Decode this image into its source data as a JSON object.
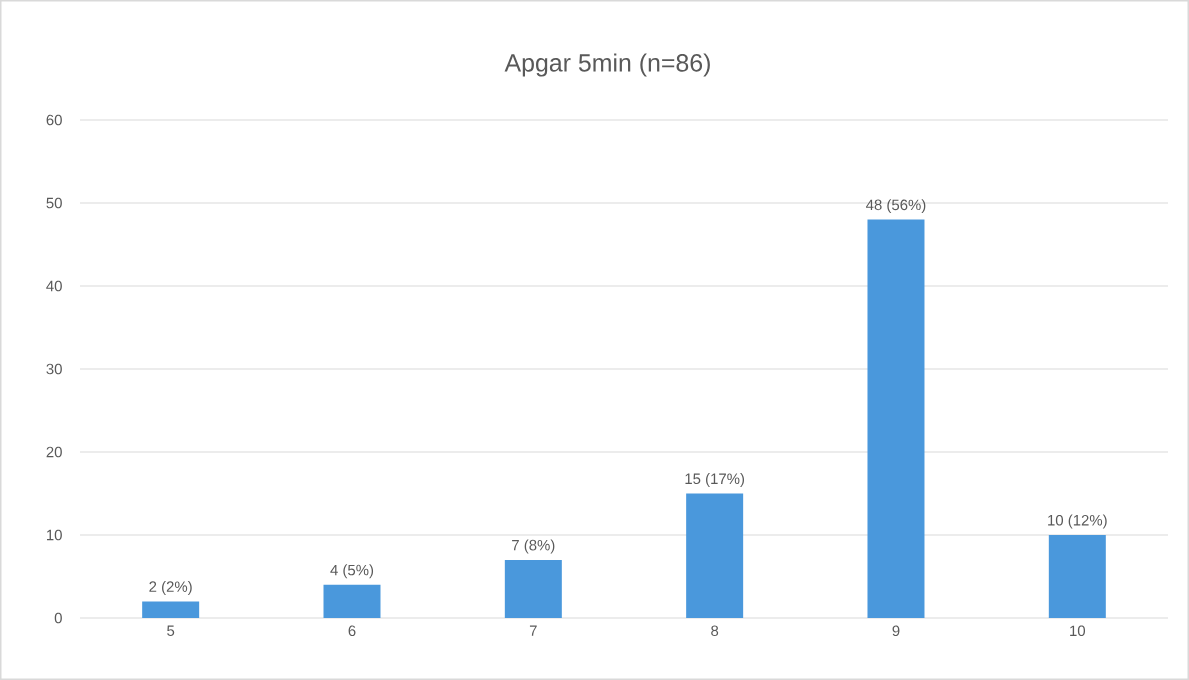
{
  "chart_data": {
    "type": "bar",
    "title": "Apgar 5min (n=86)",
    "categories": [
      "5",
      "6",
      "7",
      "8",
      "9",
      "10"
    ],
    "values": [
      2,
      4,
      7,
      15,
      48,
      10
    ],
    "value_labels": [
      "2 (2%)",
      "4 (5%)",
      "7 (8%)",
      "15 (17%)",
      "48 (56%)",
      "10 (12%)"
    ],
    "color": "#4a98dc",
    "ylim": [
      0,
      60
    ],
    "yticks": [
      0,
      10,
      20,
      30,
      40,
      50,
      60
    ],
    "grid": "y"
  }
}
